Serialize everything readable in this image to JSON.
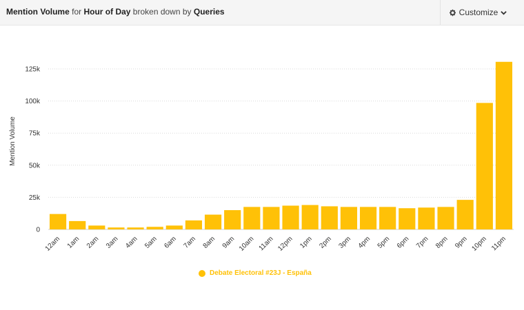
{
  "header": {
    "title_parts": [
      "Mention Volume",
      " for ",
      "Hour of Day",
      " broken down by ",
      "Queries"
    ],
    "customize_label": "Customize",
    "customize_icons": [
      "gear-icon",
      "chevron-down-icon"
    ]
  },
  "colors": {
    "bar": "#ffc107",
    "grid": "#d9d9d9",
    "header_bg": "#f5f5f5"
  },
  "chart_data": {
    "type": "bar",
    "categories": [
      "12am",
      "1am",
      "2am",
      "3am",
      "4am",
      "5am",
      "6am",
      "7am",
      "8am",
      "9am",
      "10am",
      "11am",
      "12pm",
      "1pm",
      "2pm",
      "3pm",
      "4pm",
      "5pm",
      "6pm",
      "7pm",
      "8pm",
      "9pm",
      "10pm",
      "11pm"
    ],
    "series": [
      {
        "name": "Debate Electoral #23J - España",
        "values": [
          12000,
          6500,
          3000,
          1500,
          1500,
          2000,
          3000,
          7000,
          11500,
          15000,
          17500,
          17500,
          18500,
          19000,
          18000,
          17500,
          17500,
          17500,
          16500,
          17000,
          17500,
          23000,
          98500,
          130500
        ]
      }
    ],
    "title": "",
    "xlabel": "",
    "ylabel": "Mention Volume",
    "ylim": [
      0,
      130000
    ],
    "yticks": [
      0,
      25000,
      50000,
      75000,
      100000,
      125000
    ],
    "ytick_labels": [
      "0",
      "25k",
      "50k",
      "75k",
      "100k",
      "125k"
    ],
    "grid": true,
    "legend_position": "bottom-center"
  }
}
